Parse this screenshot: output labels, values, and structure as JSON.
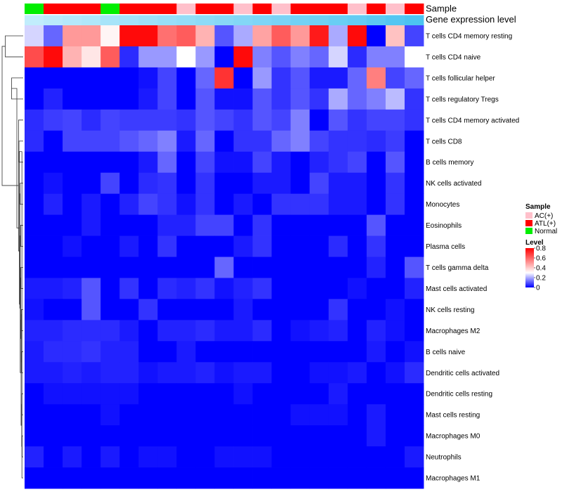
{
  "chart_data": {
    "type": "heatmap",
    "annotation_rows": [
      {
        "label": "Sample",
        "values": [
          "Normal",
          "ATL(+)",
          "ATL(+)",
          "ATL(+)",
          "Normal",
          "ATL(+)",
          "ATL(+)",
          "ATL(+)",
          "AC(+)",
          "ATL(+)",
          "ATL(+)",
          "AC(+)",
          "ATL(+)",
          "AC(+)",
          "ATL(+)",
          "ATL(+)",
          "ATL(+)",
          "AC(+)",
          "ATL(+)",
          "AC(+)",
          "ATL(+)"
        ]
      },
      {
        "label": "Gene expression level",
        "values": [
          0.02,
          0.08,
          0.12,
          0.16,
          0.22,
          0.26,
          0.3,
          0.34,
          0.38,
          0.42,
          0.46,
          0.5,
          0.54,
          0.58,
          0.62,
          0.66,
          0.7,
          0.74,
          0.8,
          0.86,
          0.92
        ]
      }
    ],
    "rows": [
      "T cells CD4 memory resting",
      "T cells CD4 naive",
      "T cells follicular helper",
      "T cells regulatory  Tregs",
      "T cells CD4 memory activated",
      "T cells CD8",
      "B cells memory",
      "NK cells activated",
      "Monocytes",
      "Eosinophils",
      "Plasma cells",
      "T cells gamma delta",
      "Mast cells activated",
      "NK cells resting",
      "Macrophages M2",
      "B cells naive",
      "Dendritic cells activated",
      "Dendritic cells resting",
      "Mast cells resting",
      "Macrophages M0",
      "Neutrophils",
      "Macrophages M1"
    ],
    "values": [
      [
        0.25,
        0.12,
        0.5,
        0.5,
        0.32,
        0.78,
        0.78,
        0.58,
        0.62,
        0.45,
        0.1,
        0.2,
        0.48,
        0.62,
        0.5,
        0.75,
        0.2,
        0.78,
        0.0,
        0.42,
        0.08
      ],
      [
        0.65,
        0.78,
        0.45,
        0.35,
        0.62,
        0.05,
        0.18,
        0.18,
        0.3,
        0.18,
        0.0,
        0.78,
        0.15,
        0.1,
        0.15,
        0.12,
        0.25,
        0.05,
        0.15,
        0.15,
        0.3
      ],
      [
        0.0,
        0.0,
        0.0,
        0.0,
        0.0,
        0.0,
        0.02,
        0.08,
        0.0,
        0.12,
        0.7,
        0.0,
        0.18,
        0.06,
        0.1,
        0.03,
        0.03,
        0.12,
        0.55,
        0.08,
        0.12
      ],
      [
        0.0,
        0.04,
        0.0,
        0.0,
        0.0,
        0.0,
        0.03,
        0.08,
        0.0,
        0.1,
        0.02,
        0.02,
        0.1,
        0.06,
        0.1,
        0.06,
        0.2,
        0.12,
        0.15,
        0.22,
        0.06
      ],
      [
        0.05,
        0.07,
        0.08,
        0.05,
        0.08,
        0.07,
        0.07,
        0.07,
        0.06,
        0.1,
        0.08,
        0.06,
        0.1,
        0.08,
        0.15,
        0.0,
        0.1,
        0.06,
        0.08,
        0.08,
        0.06
      ],
      [
        0.05,
        0.0,
        0.08,
        0.08,
        0.08,
        0.1,
        0.12,
        0.15,
        0.03,
        0.12,
        0.0,
        0.06,
        0.06,
        0.12,
        0.15,
        0.08,
        0.06,
        0.06,
        0.05,
        0.07,
        0.0
      ],
      [
        0.0,
        0.0,
        0.0,
        0.0,
        0.0,
        0.0,
        0.03,
        0.12,
        0.0,
        0.08,
        0.02,
        0.02,
        0.08,
        0.03,
        0.0,
        0.04,
        0.06,
        0.08,
        0.0,
        0.1,
        0.0
      ],
      [
        0.0,
        0.02,
        0.0,
        0.0,
        0.08,
        0.0,
        0.05,
        0.06,
        0.0,
        0.06,
        0.0,
        0.0,
        0.03,
        0.03,
        0.0,
        0.08,
        0.03,
        0.03,
        0.0,
        0.06,
        0.0
      ],
      [
        0.0,
        0.04,
        0.0,
        0.03,
        0.0,
        0.04,
        0.08,
        0.06,
        0.02,
        0.06,
        0.0,
        0.03,
        0.0,
        0.06,
        0.06,
        0.06,
        0.03,
        0.03,
        0.0,
        0.06,
        0.0
      ],
      [
        0.0,
        0.0,
        0.0,
        0.03,
        0.0,
        0.0,
        0.0,
        0.04,
        0.04,
        0.08,
        0.08,
        0.0,
        0.06,
        0.0,
        0.0,
        0.0,
        0.0,
        0.0,
        0.1,
        0.0,
        0.0
      ],
      [
        0.0,
        0.0,
        0.02,
        0.0,
        0.0,
        0.03,
        0.0,
        0.06,
        0.0,
        0.0,
        0.0,
        0.03,
        0.06,
        0.0,
        0.0,
        0.0,
        0.05,
        0.0,
        0.06,
        0.0,
        0.0
      ],
      [
        0.0,
        0.0,
        0.0,
        0.0,
        0.0,
        0.0,
        0.0,
        0.0,
        0.0,
        0.0,
        0.12,
        0.0,
        0.0,
        0.0,
        0.0,
        0.0,
        0.0,
        0.0,
        0.04,
        0.0,
        0.1
      ],
      [
        0.03,
        0.03,
        0.04,
        0.1,
        0.0,
        0.06,
        0.0,
        0.05,
        0.04,
        0.06,
        0.02,
        0.04,
        0.06,
        0.0,
        0.0,
        0.0,
        0.0,
        0.02,
        0.0,
        0.0,
        0.04
      ],
      [
        0.02,
        0.0,
        0.0,
        0.1,
        0.0,
        0.0,
        0.06,
        0.0,
        0.0,
        0.0,
        0.0,
        0.03,
        0.0,
        0.0,
        0.0,
        0.0,
        0.06,
        0.0,
        0.0,
        0.02,
        0.0
      ],
      [
        0.04,
        0.04,
        0.05,
        0.05,
        0.05,
        0.03,
        0.0,
        0.04,
        0.04,
        0.05,
        0.03,
        0.03,
        0.05,
        0.0,
        0.02,
        0.03,
        0.04,
        0.0,
        0.04,
        0.02,
        0.0
      ],
      [
        0.03,
        0.05,
        0.05,
        0.06,
        0.04,
        0.04,
        0.0,
        0.0,
        0.03,
        0.0,
        0.0,
        0.0,
        0.0,
        0.0,
        0.0,
        0.0,
        0.0,
        0.0,
        0.03,
        0.0,
        0.02
      ],
      [
        0.03,
        0.03,
        0.04,
        0.03,
        0.04,
        0.04,
        0.02,
        0.03,
        0.03,
        0.04,
        0.02,
        0.03,
        0.03,
        0.0,
        0.0,
        0.02,
        0.02,
        0.03,
        0.0,
        0.02,
        0.05
      ],
      [
        0.0,
        0.02,
        0.02,
        0.02,
        0.02,
        0.02,
        0.0,
        0.0,
        0.0,
        0.0,
        0.0,
        0.02,
        0.0,
        0.0,
        0.0,
        0.0,
        0.03,
        0.0,
        0.0,
        0.0,
        0.0
      ],
      [
        0.0,
        0.0,
        0.0,
        0.0,
        0.02,
        0.0,
        0.0,
        0.0,
        0.0,
        0.0,
        0.0,
        0.0,
        0.0,
        0.0,
        0.02,
        0.02,
        0.02,
        0.0,
        0.03,
        0.0,
        0.0
      ],
      [
        0.0,
        0.0,
        0.0,
        0.0,
        0.0,
        0.0,
        0.0,
        0.0,
        0.0,
        0.0,
        0.0,
        0.0,
        0.0,
        0.0,
        0.0,
        0.0,
        0.0,
        0.0,
        0.03,
        0.0,
        0.0
      ],
      [
        0.04,
        0.0,
        0.03,
        0.0,
        0.03,
        0.0,
        0.02,
        0.02,
        0.0,
        0.0,
        0.02,
        0.02,
        0.02,
        0.0,
        0.0,
        0.0,
        0.0,
        0.0,
        0.0,
        0.0,
        0.03
      ],
      [
        0.0,
        0.0,
        0.0,
        0.0,
        0.0,
        0.0,
        0.0,
        0.0,
        0.0,
        0.0,
        0.0,
        0.0,
        0.0,
        0.0,
        0.0,
        0.0,
        0.0,
        0.0,
        0.0,
        0.0,
        0.0
      ]
    ],
    "dendrogram": {
      "leaf_order": [
        "T cells CD4 memory resting",
        "T cells CD4 naive",
        "T cells follicular helper",
        "T cells regulatory  Tregs",
        "T cells CD4 memory activated",
        "T cells CD8",
        "B cells memory",
        "NK cells activated",
        "Monocytes",
        "Eosinophils",
        "Plasma cells",
        "T cells gamma delta",
        "Mast cells activated",
        "NK cells resting",
        "Macrophages M2",
        "B cells naive",
        "Dendritic cells activated",
        "Dendritic cells resting",
        "Mast cells resting",
        "Macrophages M0",
        "Neutrophils",
        "Macrophages M1"
      ],
      "merges": [
        {
          "a": 0,
          "b": 1,
          "height": 0.85
        },
        {
          "a": 2,
          "b": 3,
          "height": 0.55
        },
        {
          "a": 5,
          "b": 6,
          "height": 0.2
        },
        {
          "a": 7,
          "b": 8,
          "height": 0.14
        },
        {
          "a": 9,
          "b": 10,
          "height": 0.12
        },
        {
          "a": 11,
          "b": 12,
          "height": 0.11
        },
        {
          "a": 13,
          "b": 14,
          "height": 0.09
        },
        {
          "a": 15,
          "b": 16,
          "height": 0.08
        },
        {
          "a": 17,
          "b": 18,
          "height": 0.06
        },
        {
          "a": 19,
          "b": 20,
          "height": 0.05
        },
        {
          "a": 21,
          "b": 24,
          "height": 0.06
        },
        {
          "a": 30,
          "b": 31,
          "height": 0.07
        },
        {
          "a": 29,
          "b": 32,
          "height": 0.09
        },
        {
          "a": 28,
          "b": 33,
          "height": 0.1
        },
        {
          "a": 27,
          "b": 34,
          "height": 0.12
        },
        {
          "a": 26,
          "b": 35,
          "height": 0.14
        },
        {
          "a": 25,
          "b": 36,
          "height": 0.16
        },
        {
          "a": 24,
          "b": 37,
          "height": 0.18
        },
        {
          "a": 4,
          "b": 38,
          "height": 0.22
        },
        {
          "a": 23,
          "b": 39,
          "height": 0.3
        },
        {
          "a": 22,
          "b": 40,
          "height": 1.0
        }
      ]
    },
    "legend": {
      "sample": {
        "title": "Sample",
        "entries": [
          {
            "label": "AC(+)",
            "color": "#ffc0cb"
          },
          {
            "label": "ATL(+)",
            "color": "#ff0000"
          },
          {
            "label": "Normal",
            "color": "#00ee00"
          }
        ]
      },
      "level": {
        "title": "Level",
        "ticks": [
          "0.8",
          "0.6",
          "0.4",
          "0.2",
          "0"
        ],
        "tick_values": [
          0.8,
          0.6,
          0.4,
          0.2,
          0.0
        ],
        "range": [
          0,
          0.8
        ]
      }
    },
    "colors": {
      "low": "#0000ff",
      "mid": "#ffffff",
      "high": "#ff0000",
      "midpoint": 0.3,
      "gene_expr_low": "#c4eefc",
      "gene_expr_high": "#42c0f0",
      "dendrogram": "#333333"
    }
  }
}
